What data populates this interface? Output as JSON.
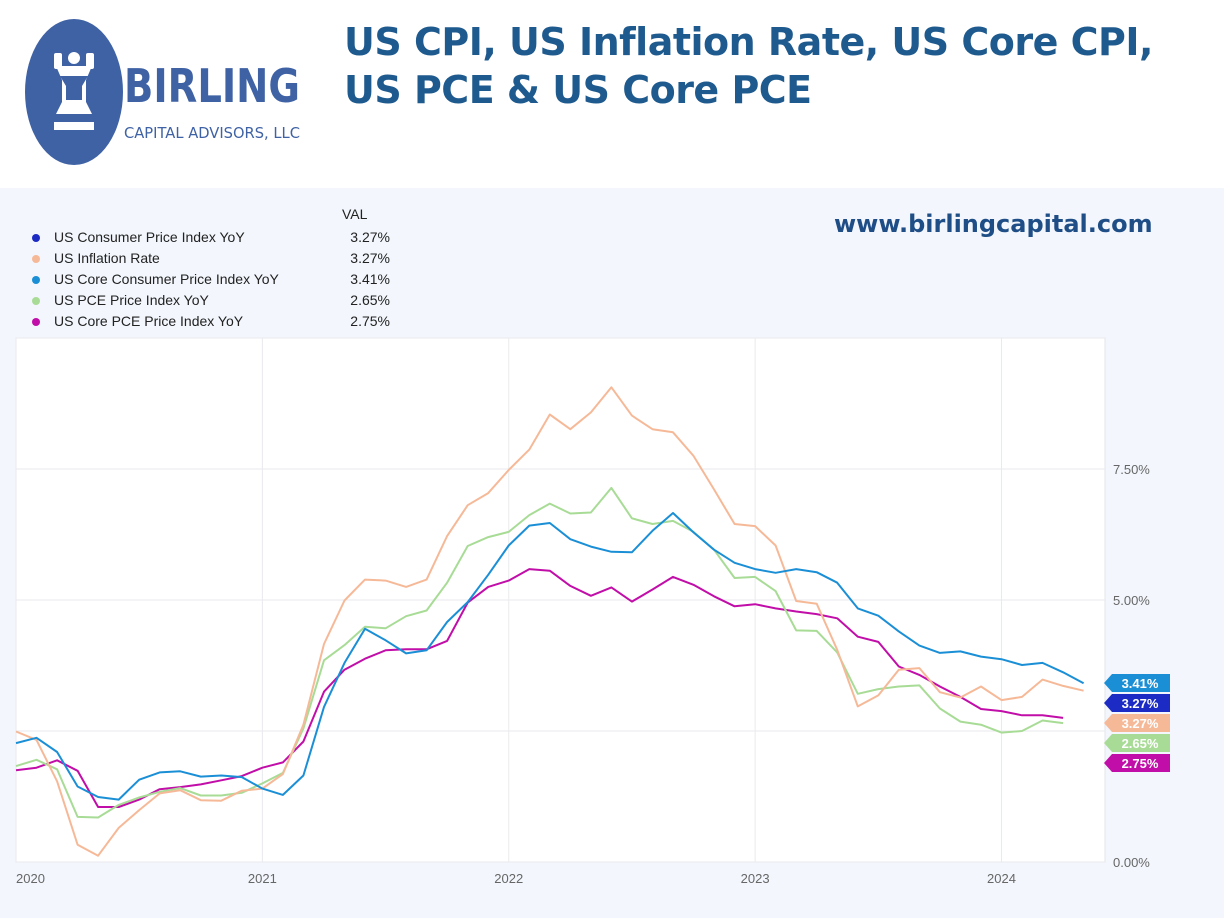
{
  "header": {
    "title_line1": "US CPI, US Inflation Rate, US Core CPI,",
    "title_line2": "US PCE & US Core PCE",
    "logo_name": "BIRLING",
    "logo_sub": "CAPITAL ADVISORS, LLC",
    "website": "www.birlingcapital.com"
  },
  "legend": {
    "header": "VAL",
    "items": [
      {
        "name": "US Consumer Price Index YoY",
        "value": "3.27%",
        "color": "#1c2bc4"
      },
      {
        "name": "US Inflation Rate",
        "value": "3.27%",
        "color": "#f6b998"
      },
      {
        "name": "US Core Consumer Price Index YoY",
        "value": "3.41%",
        "color": "#1b8fd6"
      },
      {
        "name": "US PCE Price Index YoY",
        "value": "2.65%",
        "color": "#a8dc96"
      },
      {
        "name": "US Core PCE Price Index YoY",
        "value": "2.75%",
        "color": "#c10ea8"
      }
    ]
  },
  "chart_data": {
    "type": "line",
    "x_start": 2020.0,
    "x_step": 0.08333,
    "xlim": [
      2020.0,
      2024.42
    ],
    "ylim": [
      0,
      10
    ],
    "y_ticks": [
      0,
      5,
      7.5
    ],
    "y_tick_labels": [
      "0.00%",
      "5.00%",
      "7.50%"
    ],
    "x_ticks": [
      2020,
      2021,
      2022,
      2023,
      2024
    ],
    "x_tick_labels": [
      "2020",
      "2021",
      "2022",
      "2023",
      "2024"
    ],
    "series": [
      {
        "name": "US Core Consumer Price Index YoY",
        "color": "#1b8fd6",
        "end_label": "3.41%",
        "label_bg": "#1b8fd6",
        "label_color": "#ffffff",
        "values": [
          2.27,
          2.37,
          2.1,
          1.44,
          1.24,
          1.19,
          1.57,
          1.71,
          1.73,
          1.63,
          1.65,
          1.62,
          1.4,
          1.28,
          1.65,
          2.96,
          3.8,
          4.45,
          4.23,
          3.98,
          4.04,
          4.58,
          4.96,
          5.48,
          6.04,
          6.42,
          6.47,
          6.16,
          6.02,
          5.92,
          5.91,
          6.32,
          6.66,
          6.29,
          5.96,
          5.71,
          5.59,
          5.52,
          5.59,
          5.53,
          5.33,
          4.84,
          4.7,
          4.4,
          4.13,
          3.99,
          4.02,
          3.92,
          3.87,
          3.76,
          3.8,
          3.62,
          3.41
        ]
      },
      {
        "name": "US Consumer Price Index YoY",
        "color": "#1c2bc4",
        "end_label": "3.27%",
        "label_bg": "#1c2bc4",
        "label_color": "#ffffff",
        "values": []
      },
      {
        "name": "US Inflation Rate",
        "color": "#f6b998",
        "end_label": "3.27%",
        "label_bg": "#f6b998",
        "label_color": "#ffffff",
        "values": [
          2.49,
          2.33,
          1.54,
          0.33,
          0.12,
          0.65,
          0.99,
          1.31,
          1.37,
          1.18,
          1.17,
          1.36,
          1.4,
          1.68,
          2.62,
          4.16,
          4.99,
          5.39,
          5.37,
          5.25,
          5.39,
          6.22,
          6.81,
          7.04,
          7.48,
          7.87,
          8.54,
          8.26,
          8.58,
          9.06,
          8.52,
          8.26,
          8.2,
          7.75,
          7.11,
          6.45,
          6.41,
          6.04,
          4.98,
          4.93,
          4.05,
          2.97,
          3.18,
          3.67,
          3.7,
          3.24,
          3.14,
          3.35,
          3.09,
          3.15,
          3.48,
          3.36,
          3.27
        ]
      },
      {
        "name": "US PCE Price Index YoY",
        "color": "#a8dc96",
        "end_label": "2.65%",
        "label_bg": "#a8dc96",
        "label_color": "#ffffff",
        "values": [
          1.83,
          1.95,
          1.77,
          0.86,
          0.85,
          1.09,
          1.23,
          1.34,
          1.41,
          1.27,
          1.27,
          1.32,
          1.5,
          1.7,
          2.55,
          3.85,
          4.14,
          4.49,
          4.46,
          4.69,
          4.8,
          5.33,
          6.03,
          6.2,
          6.3,
          6.62,
          6.84,
          6.65,
          6.67,
          7.14,
          6.56,
          6.45,
          6.51,
          6.3,
          5.96,
          5.42,
          5.44,
          5.17,
          4.42,
          4.41,
          4.0,
          3.21,
          3.3,
          3.35,
          3.37,
          2.93,
          2.68,
          2.62,
          2.47,
          2.5,
          2.7,
          2.65
        ]
      },
      {
        "name": "US Core PCE Price Index YoY",
        "color": "#c10ea8",
        "end_label": "2.75%",
        "label_bg": "#c10ea8",
        "label_color": "#ffffff",
        "values": [
          1.75,
          1.8,
          1.94,
          1.74,
          1.05,
          1.05,
          1.19,
          1.39,
          1.43,
          1.48,
          1.56,
          1.64,
          1.8,
          1.9,
          2.3,
          3.25,
          3.67,
          3.88,
          4.04,
          4.06,
          4.06,
          4.22,
          4.95,
          5.25,
          5.37,
          5.59,
          5.56,
          5.27,
          5.08,
          5.24,
          4.97,
          5.2,
          5.44,
          5.29,
          5.07,
          4.88,
          4.92,
          4.84,
          4.78,
          4.73,
          4.65,
          4.3,
          4.2,
          3.73,
          3.57,
          3.35,
          3.15,
          2.92,
          2.88,
          2.8,
          2.8,
          2.75
        ]
      }
    ]
  }
}
